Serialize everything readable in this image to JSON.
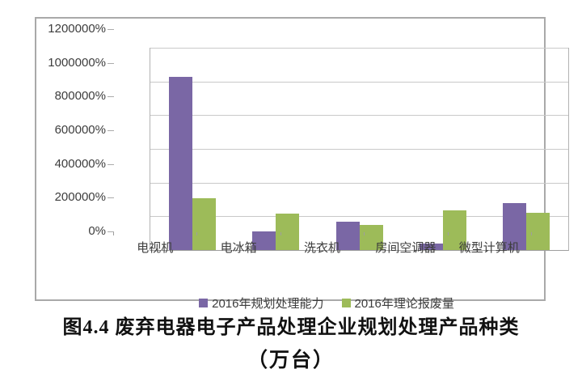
{
  "chart_data": {
    "type": "bar",
    "categories": [
      "电视机",
      "电冰箱",
      "洗衣机",
      "房间空调器",
      "微型计算机"
    ],
    "series": [
      {
        "name": "2016年规划处理能力",
        "color": "#7a67a5",
        "values": [
          1025000,
          110000,
          170000,
          40000,
          280000
        ]
      },
      {
        "name": "2016年理论报废量",
        "color": "#9dbb59",
        "values": [
          305000,
          215000,
          150000,
          235000,
          220000
        ]
      }
    ],
    "title": "图4.4 废弃电器电子产品处理企业规划处理产品种类",
    "subtitle": "（万台）",
    "xlabel": "",
    "ylabel": "",
    "ylim": [
      0,
      1200000
    ],
    "ytick_step": 200000,
    "ytick_suffix": "%",
    "grid": true,
    "legend_position": "bottom"
  },
  "caption": {
    "line1": "图4.4 废弃电器电子产品处理企业规划处理产品种类",
    "line2": "（万台）"
  },
  "colors": {
    "frame_border": "#a9a9a9",
    "gridline": "#c9c9c9",
    "axis_text": "#3d3d3d",
    "series1": "#7a67a5",
    "series2": "#9dbb59",
    "background": "#ffffff"
  }
}
